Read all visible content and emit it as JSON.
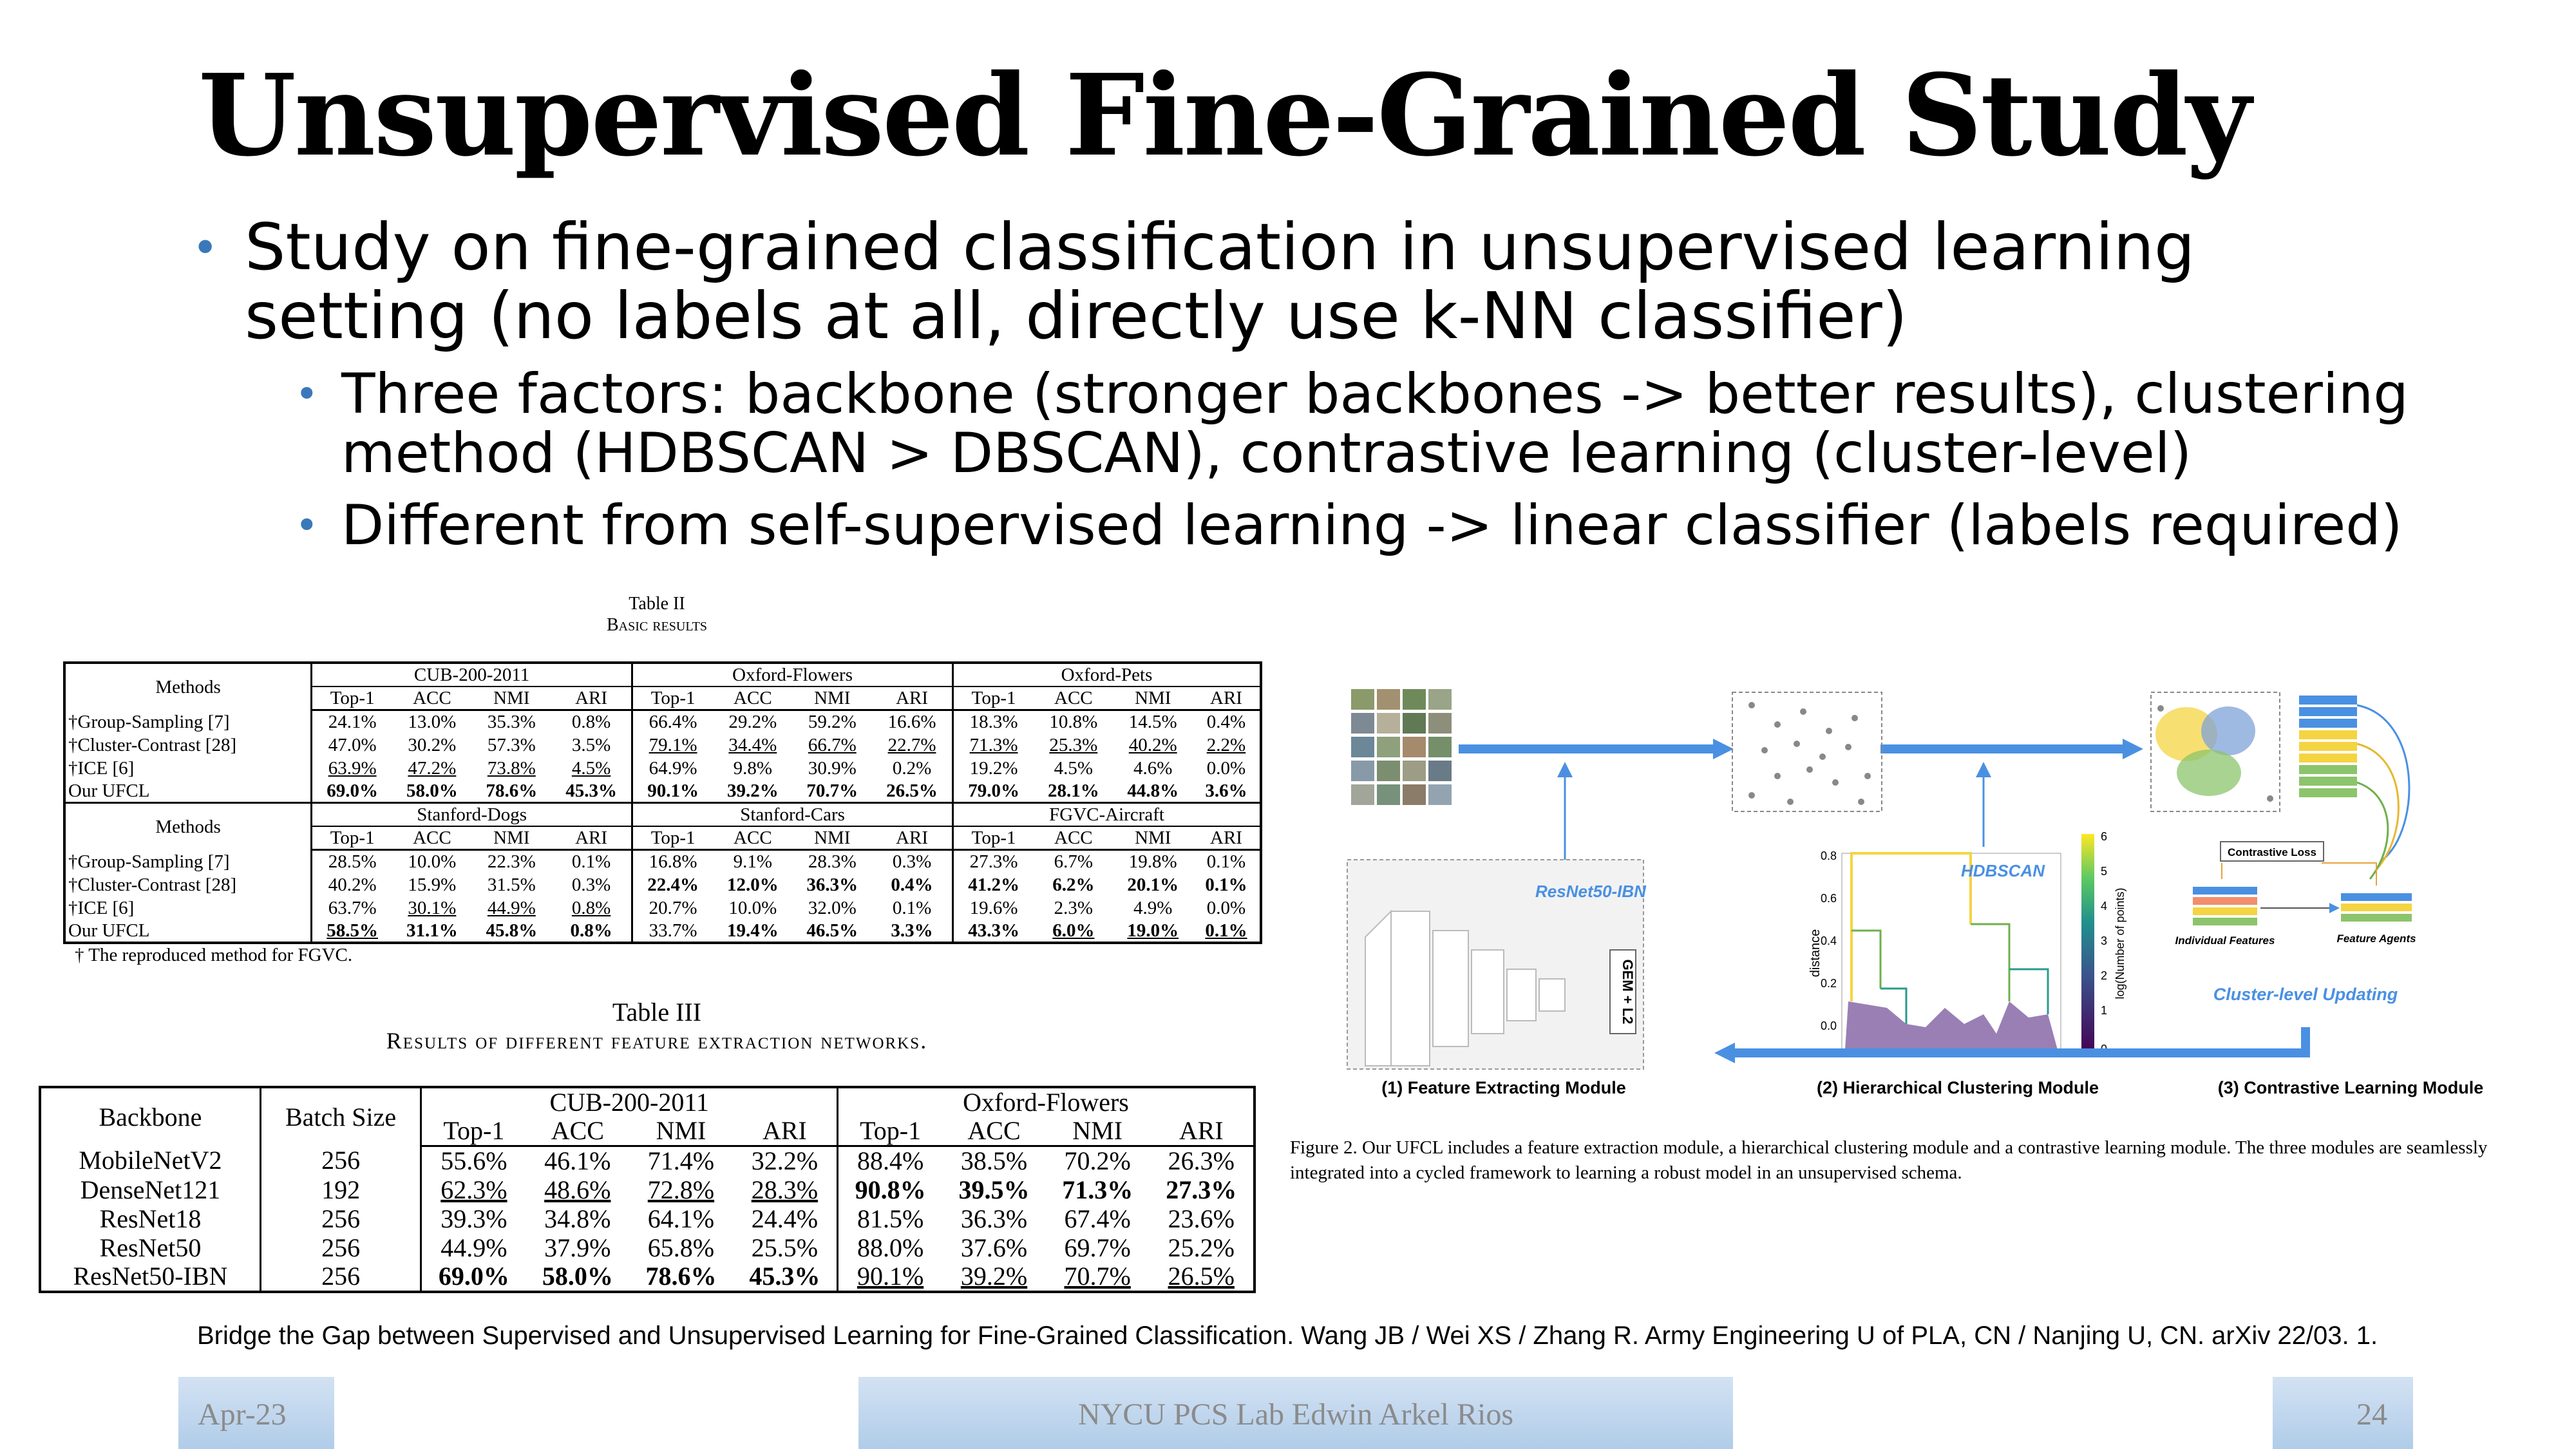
{
  "title": "Unsupervised Fine-Grained Study",
  "bullets": {
    "main": [
      "Study on fine-grained classification in unsupervised learning",
      "setting (no labels at all, directly use k-NN classifier)"
    ],
    "sub1": [
      "Three factors: backbone (stronger backbones -> better results), clustering",
      "method (HDBSCAN > DBSCAN), contrastive learning (cluster-level)"
    ],
    "sub2": "Different from self-supervised learning -> linear classifier (labels required)"
  },
  "table2": {
    "caption_line1": "Table II",
    "caption_line2": "Basic results",
    "methods_label": "Methods",
    "metrics": [
      "Top-1",
      "ACC",
      "NMI",
      "ARI"
    ],
    "block1": {
      "datasets": [
        "CUB-200-2011",
        "Oxford-Flowers",
        "Oxford-Pets"
      ],
      "rows": [
        [
          "†Group-Sampling [7]",
          "24.1%",
          "13.0%",
          "35.3%",
          "0.8%",
          "66.4%",
          "29.2%",
          "59.2%",
          "16.6%",
          "18.3%",
          "10.8%",
          "14.5%",
          "0.4%"
        ],
        [
          "†Cluster-Contrast [28]",
          "47.0%",
          "30.2%",
          "57.3%",
          "3.5%",
          "79.1%",
          "34.4%",
          "66.7%",
          "22.7%",
          "71.3%",
          "25.3%",
          "40.2%",
          "2.2%"
        ],
        [
          "†ICE [6]",
          "63.9%",
          "47.2%",
          "73.8%",
          "4.5%",
          "64.9%",
          "9.8%",
          "30.9%",
          "0.2%",
          "19.2%",
          "4.5%",
          "4.6%",
          "0.0%"
        ],
        [
          "Our UFCL",
          "69.0%",
          "58.0%",
          "78.6%",
          "45.3%",
          "90.1%",
          "39.2%",
          "70.7%",
          "26.5%",
          "79.0%",
          "28.1%",
          "44.8%",
          "3.6%"
        ]
      ]
    },
    "block2": {
      "datasets": [
        "Stanford-Dogs",
        "Stanford-Cars",
        "FGVC-Aircraft"
      ],
      "rows": [
        [
          "†Group-Sampling [7]",
          "28.5%",
          "10.0%",
          "22.3%",
          "0.1%",
          "16.8%",
          "9.1%",
          "28.3%",
          "0.3%",
          "27.3%",
          "6.7%",
          "19.8%",
          "0.1%"
        ],
        [
          "†Cluster-Contrast [28]",
          "40.2%",
          "15.9%",
          "31.5%",
          "0.3%",
          "22.4%",
          "12.0%",
          "36.3%",
          "0.4%",
          "41.2%",
          "6.2%",
          "20.1%",
          "0.1%"
        ],
        [
          "†ICE [6]",
          "63.7%",
          "30.1%",
          "44.9%",
          "0.8%",
          "20.7%",
          "10.0%",
          "32.0%",
          "0.1%",
          "19.6%",
          "2.3%",
          "4.9%",
          "0.0%"
        ],
        [
          "Our UFCL",
          "58.5%",
          "31.1%",
          "45.8%",
          "0.8%",
          "33.7%",
          "19.4%",
          "46.5%",
          "3.3%",
          "43.3%",
          "6.0%",
          "19.0%",
          "0.1%"
        ]
      ]
    },
    "footnote": "† The reproduced method for FGVC."
  },
  "table3": {
    "caption_line1": "Table III",
    "caption_line2": "Results of different feature extraction networks.",
    "backbone_label": "Backbone",
    "batch_label": "Batch Size",
    "datasets": [
      "CUB-200-2011",
      "Oxford-Flowers"
    ],
    "metrics": [
      "Top-1",
      "ACC",
      "NMI",
      "ARI"
    ],
    "rows": [
      [
        "MobileNetV2",
        "256",
        "55.6%",
        "46.1%",
        "71.4%",
        "32.2%",
        "88.4%",
        "38.5%",
        "70.2%",
        "26.3%"
      ],
      [
        "DenseNet121",
        "192",
        "62.3%",
        "48.6%",
        "72.8%",
        "28.3%",
        "90.8%",
        "39.5%",
        "71.3%",
        "27.3%"
      ],
      [
        "ResNet18",
        "256",
        "39.3%",
        "34.8%",
        "64.1%",
        "24.4%",
        "81.5%",
        "36.3%",
        "67.4%",
        "23.6%"
      ],
      [
        "ResNet50",
        "256",
        "44.9%",
        "37.9%",
        "65.8%",
        "25.5%",
        "88.0%",
        "37.6%",
        "69.7%",
        "25.2%"
      ],
      [
        "ResNet50-IBN",
        "256",
        "69.0%",
        "58.0%",
        "78.6%",
        "45.3%",
        "90.1%",
        "39.2%",
        "70.7%",
        "26.5%"
      ]
    ]
  },
  "figure": {
    "backbone_label": "ResNet50-IBN",
    "pool_label": "GEM + L2",
    "cluster_label": "HDBSCAN",
    "y_axis_label": "distance",
    "y_ticks": [
      "0.8",
      "0.6",
      "0.4",
      "0.2",
      "0.0"
    ],
    "colorbar_label": "log(Number of points)",
    "colorbar_ticks": [
      "6",
      "5",
      "4",
      "3",
      "2",
      "1",
      "0"
    ],
    "contrastive_loss": "Contrastive Loss",
    "individual_features": "Individual Features",
    "feature_agents": "Feature Agents",
    "cluster_updating": "Cluster-level Updating",
    "module_labels": [
      "(1) Feature Extracting Module",
      "(2) Hierarchical Clustering Module",
      "(3) Contrastive Learning Module"
    ],
    "caption": "Figure 2.  Our UFCL includes a feature extraction module, a hierarchical clustering module and a contrastive learning module. The three modules are seamlessly integrated into a cycled framework to learning a robust model in an unsupervised schema."
  },
  "citation": "Bridge the Gap between Supervised and Unsupervised Learning for Fine-Grained Classification. Wang JB / Wei XS / Zhang R.  Army Engineering U of PLA, CN / Nanjing U, CN.  arXiv 22/03. 1.",
  "footer": {
    "date": "Apr-23",
    "center": "NYCU PCS Lab Edwin Arkel Rios",
    "page": "24"
  },
  "colors": {
    "bullet": "#3a79b9",
    "arrow": "#4a90e2",
    "footer_text": "#8b8b8b"
  }
}
